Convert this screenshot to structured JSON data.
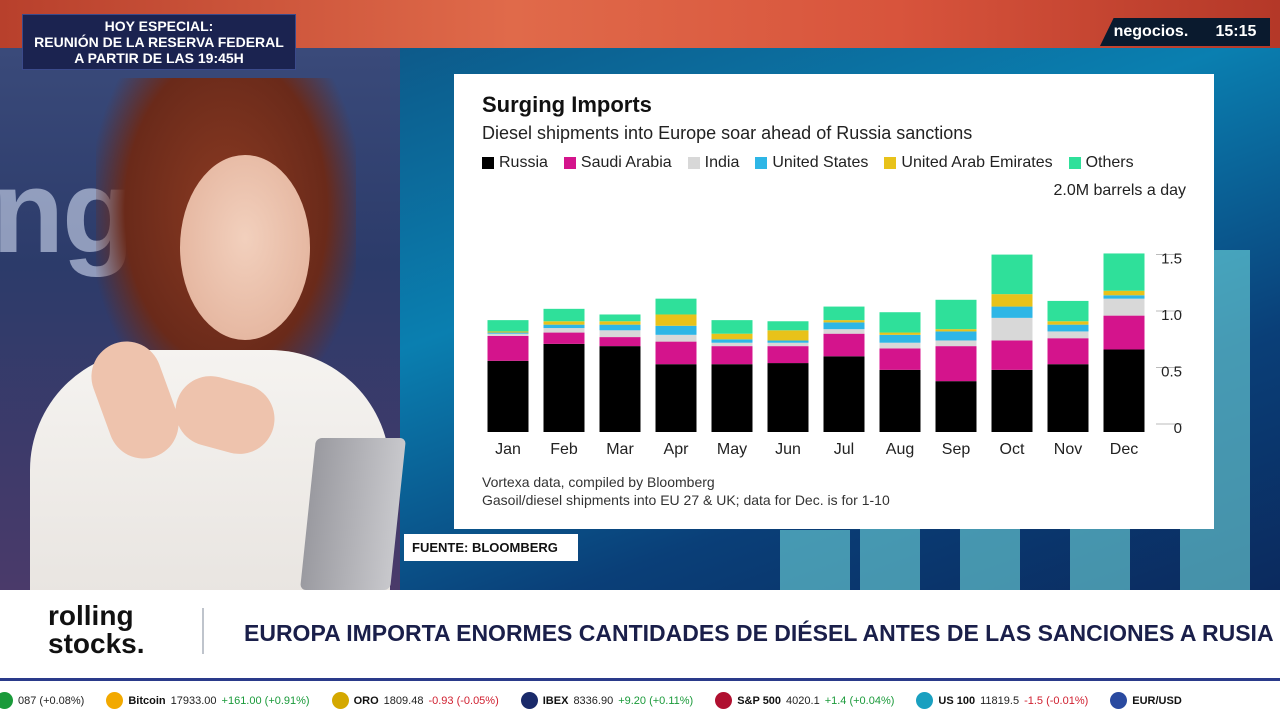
{
  "banner": {
    "line1": "HOY ESPECIAL:",
    "line2": "REUNIÓN DE LA RESERVA FEDERAL",
    "line3": "A PARTIR DE LAS 19:45H"
  },
  "channel": {
    "name": "negocios.",
    "time": "15:15"
  },
  "chart": {
    "title": "Surging Imports",
    "subtitle": "Diesel shipments into Europe soar ahead of Russia sanctions",
    "unit_label": "2.0M barrels a day",
    "note1": "Vortexa data, compiled by Bloomberg",
    "note2": "Gasoil/diesel shipments into EU 27 & UK; data for Dec. is for 1-10"
  },
  "chart_data": {
    "type": "bar",
    "stacked": true,
    "title": "Surging Imports",
    "subtitle": "Diesel shipments into Europe soar ahead of Russia sanctions",
    "ylabel": "2.0M barrels a day",
    "ylim": [
      0,
      2.0
    ],
    "yticks": [
      0,
      0.5,
      1.0,
      1.5
    ],
    "ytick_labels": [
      "0",
      "0.5",
      "1.0",
      "1.5"
    ],
    "legend_position": "top",
    "categories": [
      "Jan",
      "Feb",
      "Mar",
      "Apr",
      "May",
      "Jun",
      "Jul",
      "Aug",
      "Sep",
      "Oct",
      "Nov",
      "Dec"
    ],
    "series": [
      {
        "name": "Russia",
        "color": "#000000",
        "values": [
          0.63,
          0.78,
          0.76,
          0.6,
          0.6,
          0.61,
          0.67,
          0.55,
          0.45,
          0.55,
          0.6,
          0.73
        ]
      },
      {
        "name": "Saudi Arabia",
        "color": "#d4148c",
        "values": [
          0.22,
          0.1,
          0.08,
          0.2,
          0.16,
          0.15,
          0.2,
          0.19,
          0.31,
          0.26,
          0.23,
          0.3
        ]
      },
      {
        "name": "India",
        "color": "#d8d8d8",
        "values": [
          0.02,
          0.04,
          0.06,
          0.06,
          0.03,
          0.03,
          0.04,
          0.05,
          0.05,
          0.2,
          0.06,
          0.15
        ]
      },
      {
        "name": "United States",
        "color": "#2eb6e6",
        "values": [
          0.01,
          0.03,
          0.05,
          0.08,
          0.03,
          0.02,
          0.06,
          0.07,
          0.08,
          0.1,
          0.06,
          0.03
        ]
      },
      {
        "name": "United Arab Emirates",
        "color": "#e8c21a",
        "values": [
          0.01,
          0.03,
          0.03,
          0.1,
          0.05,
          0.09,
          0.02,
          0.02,
          0.02,
          0.11,
          0.03,
          0.04
        ]
      },
      {
        "name": "Others",
        "color": "#2fe09a",
        "values": [
          0.1,
          0.11,
          0.06,
          0.14,
          0.12,
          0.08,
          0.12,
          0.18,
          0.26,
          0.35,
          0.18,
          0.33
        ]
      }
    ]
  },
  "source": "FUENTE: BLOOMBERG",
  "lower_third": {
    "logo_line1": "rolling",
    "logo_line2": "stocks.",
    "headline": "EUROPA IMPORTA ENORMES CANTIDADES DE DIÉSEL ANTES DE LAS SANCIONES A RUSIA"
  },
  "ticker": [
    {
      "icon": "up-arrow-icon",
      "color": "#1a9a3a",
      "name": "",
      "price": "087 (+0.08%)",
      "change": "",
      "dir": "up"
    },
    {
      "icon": "bitcoin-icon",
      "color": "#f2a900",
      "name": "Bitcoin",
      "price": "17933.00",
      "change": "+161.00 (+0.91%)",
      "dir": "up"
    },
    {
      "icon": "gold-icon",
      "color": "#d4a800",
      "name": "ORO",
      "price": "1809.48",
      "change": "-0.93 (-0.05%)",
      "dir": "down"
    },
    {
      "icon": "ibex-icon",
      "color": "#1a2a6a",
      "name": "IBEX",
      "price": "8336.90",
      "change": "+9.20 (+0.11%)",
      "dir": "up"
    },
    {
      "icon": "sp500-icon",
      "color": "#b01030",
      "name": "S&P 500",
      "price": "4020.1",
      "change": "+1.4 (+0.04%)",
      "dir": "up"
    },
    {
      "icon": "us100-icon",
      "color": "#1aa0c0",
      "name": "US 100",
      "price": "11819.5",
      "change": "-1.5 (-0.01%)",
      "dir": "down"
    },
    {
      "icon": "eurusd-icon",
      "color": "#2a4aa0",
      "name": "EUR/USD",
      "price": "",
      "change": "",
      "dir": "up"
    }
  ]
}
